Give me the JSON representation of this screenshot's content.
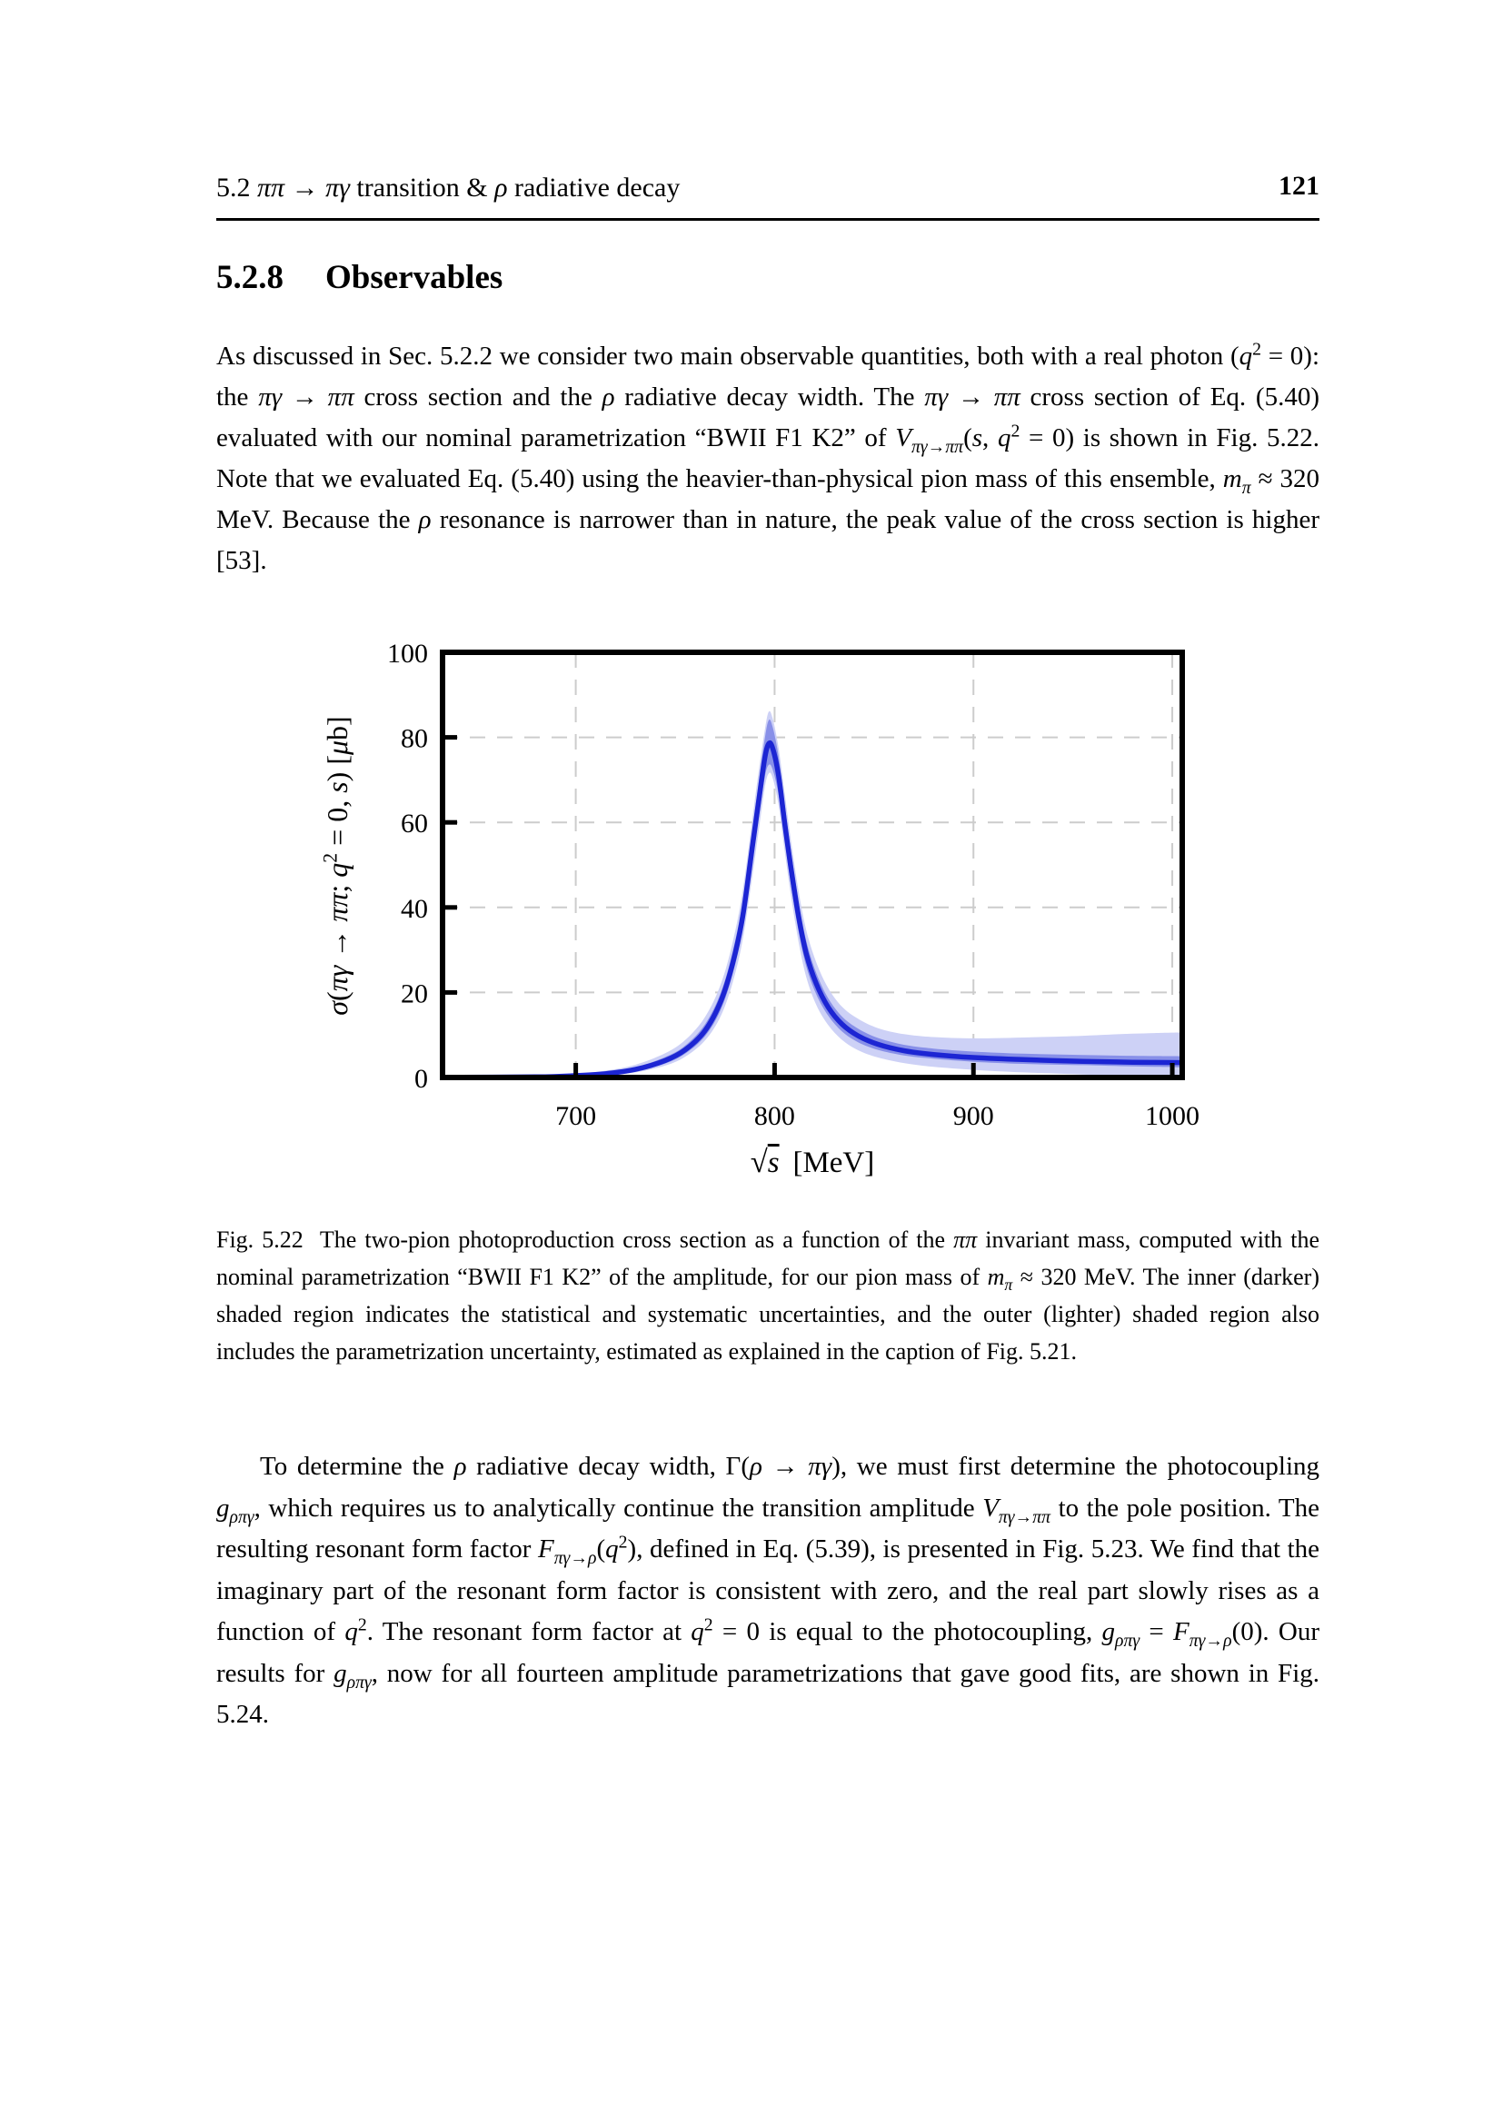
{
  "page": {
    "header": {
      "section_html": "5.2 <i>ππ</i> → <i>πγ</i> transition &amp; <i>ρ</i> radiative decay",
      "page_number": "121"
    },
    "section_heading": {
      "number": "5.2.8",
      "title": "Observables"
    },
    "paragraph1_html": "As discussed in Sec. 5.2.2 we consider two main observable quantities, both with a real photon (<i>q</i><sup>2</sup> = 0): the <i>πγ</i> → <i>ππ</i> cross section and the <i>ρ</i> radiative decay width. The <i>πγ</i> → <i>ππ</i> cross section of Eq. (5.40) evaluated with our nominal parametrization “BWII F1 K2” of <i>V</i><sub><i>πγ</i>→<i>ππ</i></sub>(<i>s</i>, <i>q</i><sup>2</sup> = 0) is shown in Fig. 5.22. Note that we evaluated Eq. (5.40) using the heavier-than-physical pion mass of this ensemble, <i>m</i><sub><i>π</i></sub> ≈ 320 MeV. Because the <i>ρ</i> resonance is narrower than in nature, the peak value of the cross section is higher [53].",
    "figure_caption_html": "Fig. 5.22&nbsp;&nbsp;The two-pion photoproduction cross section as a function of the <i>ππ</i> invariant mass, computed with the nominal parametrization “BWII F1 K2” of the amplitude, for our pion mass of <i>m</i><sub><i>π</i></sub> ≈ 320 MeV. The inner (darker) shaded region indicates the statistical and systematic uncertainties, and the outer (lighter) shaded region also includes the parametrization uncertainty, estimated as explained in the caption of Fig. 5.21.",
    "paragraph2_html": "To determine the <i>ρ</i> radiative decay width, Γ(<i>ρ</i> → <i>πγ</i>), we must first determine the photocoupling <i>g</i><sub><i>ρπγ</i></sub>, which requires us to analytically continue the transition amplitude <i>V</i><sub><i>πγ</i>→<i>ππ</i></sub> to the pole position. The resulting resonant form factor <i>F</i><sub><i>πγ</i>→<i>ρ</i></sub>(<i>q</i><sup>2</sup>), defined in Eq. (5.39), is presented in Fig. 5.23. We find that the imaginary part of the resonant form factor is consistent with zero, and the real part slowly rises as a function of <i>q</i><sup>2</sup>. The resonant form factor at <i>q</i><sup>2</sup> = 0 is equal to the photocoupling, <i>g</i><sub><i>ρπγ</i></sub> = <i>F</i><sub><i>πγ</i>→<i>ρ</i></sub>(0). Our results for <i>g</i><sub><i>ρπγ</i></sub>, now for all fourteen amplitude parametrizations that gave good fits, are shown in Fig. 5.24."
  },
  "chart_data": {
    "type": "line",
    "title": "",
    "xlabel": "√s [MeV]",
    "xlabel_html": "<span class=\"sqrt\">√</span><span class=\"sqrt-arg\">s</span>&thinsp; [MeV]",
    "ylabel": "σ(πγ → ππ; q² = 0, s) [μb]",
    "ylabel_html": "<i>σ</i>(<i>πγ</i> → <i>ππ</i>; <i>q</i><sup>2</sup> = 0, <i>s</i>) [<i>μ</i>b]",
    "xlim": [
      633,
      1005
    ],
    "ylim": [
      0,
      100
    ],
    "xticks": [
      700,
      800,
      900,
      1000
    ],
    "yticks": [
      0,
      20,
      40,
      60,
      80,
      100
    ],
    "grid": true,
    "grid_style": "dashed",
    "legend": "none",
    "colors": {
      "line": "#1c25d3",
      "inner_band": "#8890e8",
      "outer_band": "#cdd1f6",
      "grid": "#cccccc",
      "frame": "#000000"
    },
    "x": [
      633,
      680,
      700,
      715,
      730,
      745,
      755,
      765,
      773,
      779,
      784,
      789,
      792,
      795,
      797,
      799,
      802,
      805,
      808,
      812,
      816,
      821,
      827,
      834,
      842,
      852,
      865,
      880,
      900,
      925,
      955,
      980,
      1005
    ],
    "series": [
      {
        "name": "nominal parametrization BWII F1 K2",
        "values": [
          0.02,
          0.15,
          0.45,
          0.9,
          1.9,
          4.0,
          6.5,
          11,
          18,
          27,
          38,
          55,
          65,
          75,
          78.5,
          77.5,
          71,
          60,
          50,
          38,
          29,
          22,
          16.5,
          12.5,
          9.8,
          7.8,
          6.3,
          5.4,
          4.7,
          4.2,
          3.8,
          3.6,
          3.5
        ]
      }
    ],
    "bands": [
      {
        "name": "outer: statistical + systematic + parametrization uncertainty",
        "color": "#cdd1f6",
        "lo": [
          0,
          0.05,
          0.2,
          0.5,
          1.2,
          2.8,
          4.9,
          8.7,
          14.5,
          22.5,
          32.5,
          48,
          58,
          68,
          71.5,
          70.5,
          64,
          53.5,
          43.5,
          32,
          23.5,
          17,
          12.3,
          8.8,
          6.4,
          4.7,
          3.4,
          2.5,
          1.8,
          1.2,
          0.7,
          0.3,
          0.0
        ],
        "hi": [
          0.15,
          0.45,
          0.9,
          1.6,
          3.0,
          5.7,
          8.8,
          14.2,
          22,
          32,
          44,
          61.5,
          72,
          81.5,
          86,
          84.5,
          77.5,
          67,
          56.5,
          44,
          34.5,
          27,
          21,
          16.6,
          13.8,
          11.6,
          10.2,
          9.5,
          9.2,
          9.4,
          9.8,
          10.3,
          10.6
        ]
      },
      {
        "name": "inner: statistical + systematic uncertainty",
        "color": "#8890e8",
        "lo": [
          0,
          0.1,
          0.3,
          0.7,
          1.5,
          3.3,
          5.6,
          9.7,
          16,
          24.5,
          35,
          51,
          61,
          70.5,
          73.5,
          72.5,
          66.5,
          56,
          46,
          34.5,
          26,
          19.5,
          14.5,
          10.8,
          8.3,
          6.5,
          5.2,
          4.4,
          3.7,
          3.2,
          2.9,
          2.6,
          2.4
        ],
        "hi": [
          0.1,
          0.3,
          0.7,
          1.2,
          2.4,
          4.8,
          7.5,
          12.5,
          20,
          29.8,
          41.5,
          59,
          69.5,
          79.5,
          84,
          82.5,
          75.5,
          64.5,
          54,
          41.5,
          32,
          24.5,
          18.6,
          14.3,
          11.5,
          9.3,
          7.7,
          6.8,
          6.1,
          5.6,
          5.3,
          5.1,
          5.0
        ]
      }
    ]
  }
}
